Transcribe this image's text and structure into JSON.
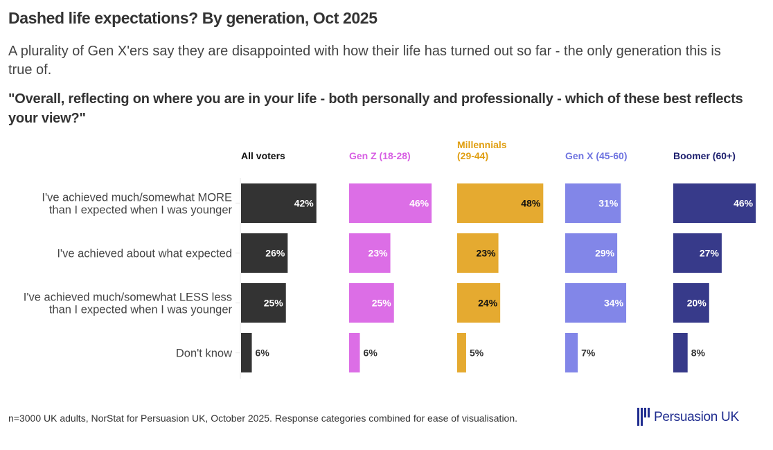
{
  "header": {
    "title": "Dashed life expectations? By generation, Oct 2025",
    "subtitle": "A plurality of Gen X'ers say they are disappointed with how their life has turned out so far - the only generation this is true of.",
    "question": "\"Overall, reflecting on where you are in your life - both personally and professionally - which of these best reflects your view?\""
  },
  "footer": {
    "note": "n=3000 UK adults, NorStat for Persuasion UK, October 2025. Response categories combined for ease of visualisation.",
    "logo_text": "Persuasion UK",
    "logo_color": "#1f2c8f"
  },
  "chart_data": {
    "type": "bar",
    "orientation": "horizontal",
    "layout": "small-multiples",
    "title": "Dashed life expectations? By generation, Oct 2025",
    "xlabel": "",
    "ylabel": "",
    "unit": "%",
    "xlim": [
      0,
      50
    ],
    "grid": false,
    "legend": "none (panel headers)",
    "categories": [
      [
        "I've achieved much/somewhat MORE",
        "than I expected when I was younger"
      ],
      [
        "I've achieved about what expected"
      ],
      [
        "I've achieved much/somewhat LESS less",
        "than I expected when I was younger"
      ],
      [
        "Don't know"
      ]
    ],
    "series": [
      {
        "name": "All voters",
        "header_lines": [
          "All voters"
        ],
        "color": "#333333",
        "header_color": "#111111",
        "label_color": "#ffffff",
        "values": [
          42,
          26,
          25,
          6
        ]
      },
      {
        "name": "Gen Z (18-28)",
        "header_lines": [
          "Gen Z (18-28)"
        ],
        "color": "#dc6ee6",
        "header_color": "#d75ee3",
        "label_color": "#ffffff",
        "values": [
          46,
          23,
          25,
          6
        ]
      },
      {
        "name": "Millennials (29-44)",
        "header_lines": [
          "Millennials",
          "(29-44)"
        ],
        "color": "#e5aa30",
        "header_color": "#e09e10",
        "label_color": "#111111",
        "values": [
          48,
          23,
          24,
          5
        ]
      },
      {
        "name": "Gen X (45-60)",
        "header_lines": [
          "Gen X (45-60)"
        ],
        "color": "#8286e8",
        "header_color": "#6f74e0",
        "label_color": "#ffffff",
        "values": [
          31,
          29,
          34,
          7
        ]
      },
      {
        "name": "Boomer (60+)",
        "header_lines": [
          "Boomer (60+)"
        ],
        "color": "#373a8a",
        "header_color": "#1d1f6e",
        "label_color": "#ffffff",
        "values": [
          46,
          27,
          20,
          8
        ]
      }
    ],
    "outside_label_color": "#333333"
  }
}
